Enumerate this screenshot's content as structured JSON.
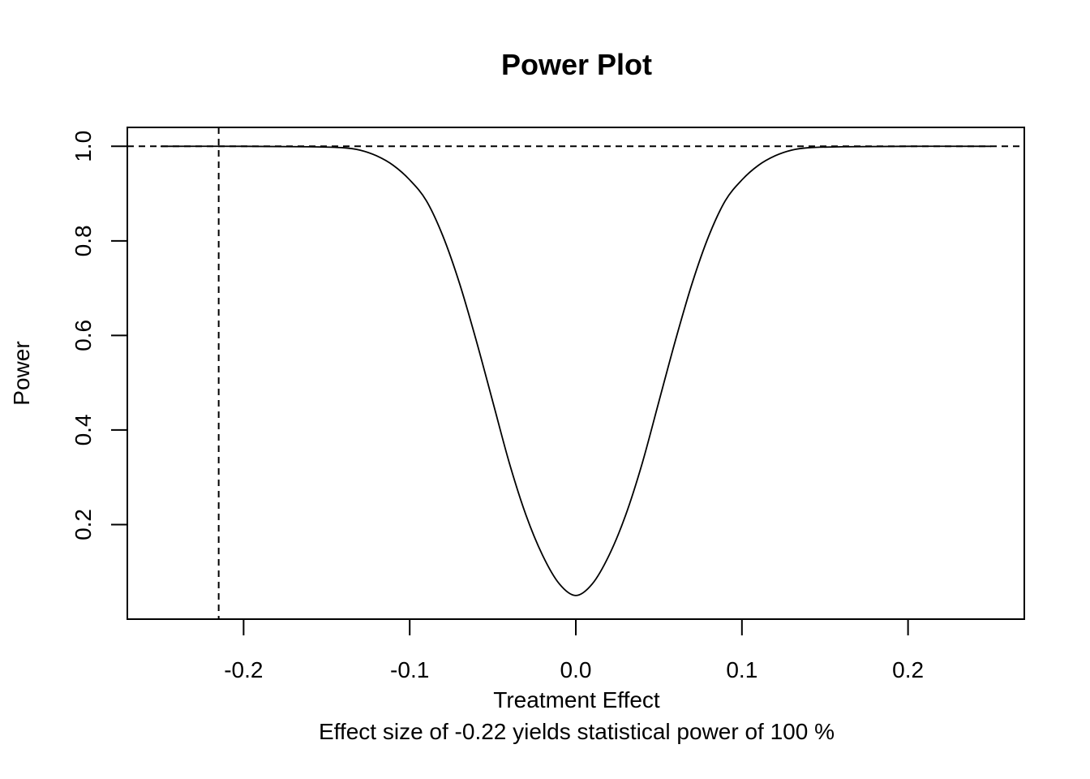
{
  "chart_data": {
    "type": "line",
    "title": "Power Plot",
    "xlabel": "Treatment Effect",
    "ylabel": "Power",
    "subtitle": "Effect size of -0.22 yields statistical power of 100 %",
    "xlim": [
      -0.27,
      0.27
    ],
    "ylim": [
      0.0,
      1.04
    ],
    "x_ticks": [
      -0.2,
      -0.1,
      0.0,
      0.1,
      0.2
    ],
    "x_tick_labels": [
      "-0.2",
      "-0.1",
      "0.0",
      "0.1",
      "0.2"
    ],
    "y_ticks": [
      0.2,
      0.4,
      0.6,
      0.8,
      1.0
    ],
    "y_tick_labels": [
      "0.2",
      "0.4",
      "0.6",
      "0.8",
      "1.0"
    ],
    "grid": false,
    "reference_lines": {
      "horizontal": 1.0,
      "vertical": -0.215
    },
    "series": [
      {
        "x": [
          -0.25,
          -0.2,
          -0.16,
          -0.14,
          -0.13,
          -0.12,
          -0.11,
          -0.1,
          -0.09,
          -0.08,
          -0.07,
          -0.06,
          -0.05,
          -0.04,
          -0.03,
          -0.02,
          -0.01,
          0.0,
          0.01,
          0.02,
          0.03,
          0.04,
          0.05,
          0.06,
          0.07,
          0.08,
          0.09,
          0.1,
          0.11,
          0.12,
          0.13,
          0.14,
          0.16,
          0.2,
          0.25
        ],
        "y": [
          1.0,
          1.0,
          0.999,
          0.997,
          0.992,
          0.98,
          0.96,
          0.929,
          0.885,
          0.81,
          0.71,
          0.59,
          0.46,
          0.33,
          0.22,
          0.135,
          0.075,
          0.05,
          0.075,
          0.135,
          0.22,
          0.33,
          0.46,
          0.59,
          0.71,
          0.81,
          0.885,
          0.929,
          0.96,
          0.98,
          0.992,
          0.997,
          0.999,
          1.0,
          1.0
        ]
      }
    ]
  }
}
